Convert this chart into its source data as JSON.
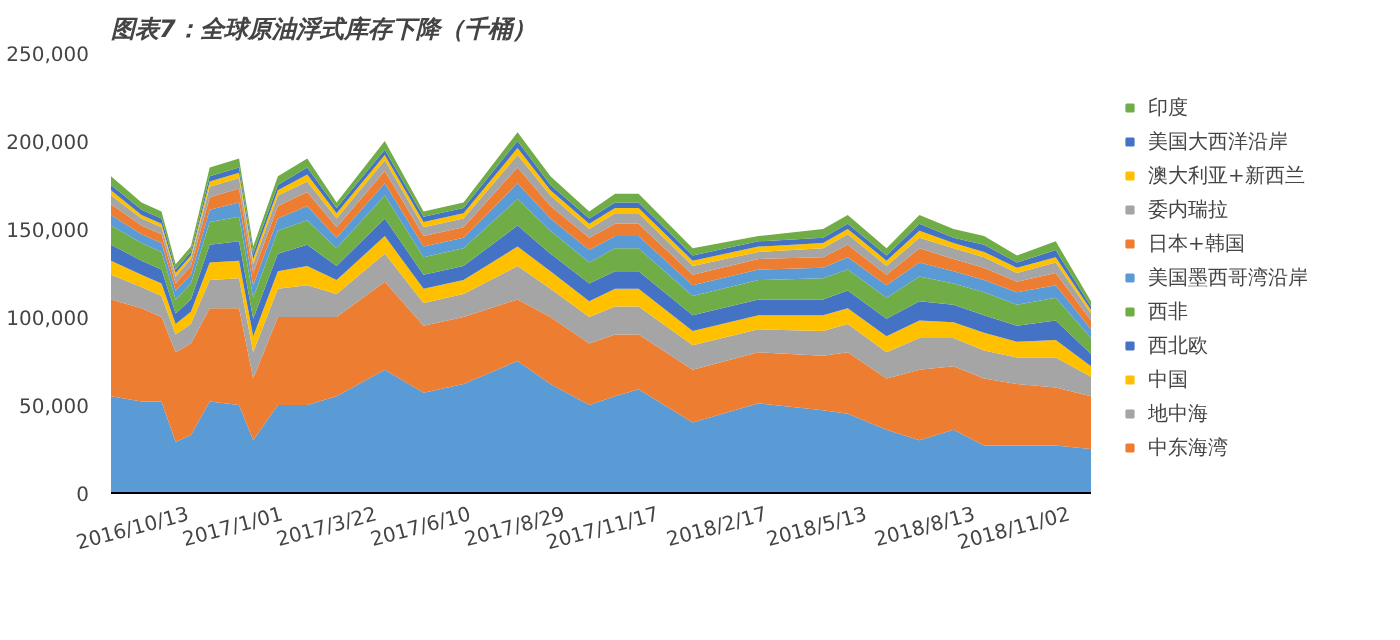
{
  "chart_data": {
    "type": "area",
    "stacked": true,
    "title": "图表7：全球原油浮式库存下降（千桶）",
    "x": [
      "2016-08-08",
      "2016-09-03",
      "2016-09-20",
      "2016-10-02",
      "2016-10-15",
      "2016-10-31",
      "2016-11-25",
      "2016-12-07",
      "2016-12-28",
      "2017-01-22",
      "2017-02-16",
      "2017-03-29",
      "2017-05-01",
      "2017-06-04",
      "2017-07-20",
      "2017-08-17",
      "2017-09-19",
      "2017-10-11",
      "2017-10-31",
      "2017-12-16",
      "2018-02-10",
      "2018-04-06",
      "2018-04-27",
      "2018-05-30",
      "2018-06-27",
      "2018-07-26",
      "2018-08-21",
      "2018-09-18",
      "2018-10-21",
      "2018-11-20"
    ],
    "xlim": [
      "2016-08-08",
      "2018-11-20"
    ],
    "xticks": [
      {
        "value": "2016-10-13",
        "label": "2016/10/13"
      },
      {
        "value": "2017-01-01",
        "label": "2017/1/01"
      },
      {
        "value": "2017-03-22",
        "label": "2017/3/22"
      },
      {
        "value": "2017-06-10",
        "label": "2017/6/10"
      },
      {
        "value": "2017-08-29",
        "label": "2017/8/29"
      },
      {
        "value": "2017-11-17",
        "label": "2017/11/17"
      },
      {
        "value": "2018-02-17",
        "label": "2018/2/17"
      },
      {
        "value": "2018-05-13",
        "label": "2018/5/13"
      },
      {
        "value": "2018-08-13",
        "label": "2018/8/13"
      },
      {
        "value": "2018-11-02",
        "label": "2018/11/02"
      }
    ],
    "ylim": [
      0,
      250000
    ],
    "yticks": [
      {
        "value": 0,
        "label": "0"
      },
      {
        "value": 50000,
        "label": "50,000"
      },
      {
        "value": 100000,
        "label": "100,000"
      },
      {
        "value": 150000,
        "label": "150,000"
      },
      {
        "value": 200000,
        "label": "200,000"
      },
      {
        "value": 250000,
        "label": "250,000"
      }
    ],
    "legend": "right",
    "series": [
      {
        "color": "#5b9bd5",
        "values": [
          55000,
          52000,
          52000,
          29000,
          33000,
          52000,
          50000,
          30000,
          50000,
          50000,
          55000,
          70000,
          57000,
          62000,
          75000,
          62000,
          50000,
          55000,
          59000,
          40000,
          51000,
          47000,
          45000,
          36000,
          30000,
          36000,
          27000,
          27000,
          27000,
          25000
        ]
      },
      {
        "name": "中东海湾",
        "color": "#ed7d31",
        "values": [
          55000,
          53000,
          48000,
          51000,
          52000,
          53000,
          55000,
          35000,
          50000,
          50000,
          45000,
          50000,
          38000,
          38000,
          35000,
          38000,
          35000,
          35000,
          31000,
          30000,
          29000,
          31000,
          35000,
          29000,
          40000,
          36000,
          38000,
          35000,
          33000,
          30000
        ]
      },
      {
        "name": "地中海",
        "color": "#a5a5a5",
        "values": [
          14000,
          12000,
          12000,
          10000,
          11000,
          16000,
          17000,
          15000,
          16000,
          18000,
          13000,
          16000,
          13000,
          13000,
          19000,
          16000,
          15000,
          16000,
          16000,
          14000,
          13000,
          14000,
          16000,
          15000,
          18000,
          16000,
          16000,
          15000,
          17000,
          11000
        ]
      },
      {
        "name": "中国",
        "color": "#ffc000",
        "values": [
          8000,
          7000,
          7000,
          6000,
          7000,
          10000,
          10000,
          9000,
          10000,
          11000,
          8000,
          10000,
          8000,
          8000,
          11000,
          10000,
          9000,
          10000,
          10000,
          8000,
          8000,
          9000,
          9000,
          9000,
          10000,
          9000,
          10000,
          9000,
          10000,
          6000
        ]
      },
      {
        "name": "西北欧",
        "color": "#4472c4",
        "values": [
          9000,
          8000,
          8000,
          6000,
          7000,
          10000,
          11000,
          10000,
          10000,
          12000,
          8000,
          10000,
          8000,
          8000,
          12000,
          10000,
          10000,
          10000,
          10000,
          9000,
          9000,
          9000,
          10000,
          10000,
          11000,
          10000,
          10000,
          9000,
          11000,
          7000
        ]
      },
      {
        "name": "西非",
        "color": "#70ad47",
        "values": [
          11000,
          10000,
          10000,
          8000,
          9000,
          13000,
          14000,
          12000,
          13000,
          14000,
          10000,
          13000,
          10000,
          10000,
          15000,
          13000,
          12000,
          13000,
          13000,
          11000,
          11000,
          12000,
          12000,
          12000,
          14000,
          12000,
          13000,
          12000,
          13000,
          9000
        ]
      },
      {
        "name": "美国墨西哥湾沿岸",
        "color": "#5b9bd5",
        "values": [
          6000,
          5000,
          5000,
          5000,
          5000,
          7000,
          8000,
          7000,
          7000,
          8000,
          6000,
          7000,
          6000,
          6000,
          9000,
          7000,
          7000,
          7000,
          7000,
          6000,
          6000,
          6000,
          7000,
          7000,
          8000,
          7000,
          7000,
          7000,
          7000,
          5000
        ]
      },
      {
        "name": "日本+韩国",
        "color": "#ed7d31",
        "values": [
          6000,
          5000,
          5000,
          4000,
          5000,
          7000,
          8000,
          7000,
          7000,
          8000,
          6000,
          7000,
          6000,
          6000,
          9000,
          7000,
          7000,
          7000,
          7000,
          6000,
          6000,
          6000,
          7000,
          6000,
          8000,
          7000,
          7000,
          6000,
          7000,
          5000
        ]
      },
      {
        "name": "委内瑞拉",
        "color": "#a5a5a5",
        "values": [
          5000,
          4000,
          4000,
          4000,
          4000,
          6000,
          6000,
          5000,
          6000,
          6000,
          5000,
          6000,
          5000,
          5000,
          7000,
          6000,
          5000,
          6000,
          6000,
          5000,
          4000,
          5000,
          6000,
          5000,
          6000,
          6000,
          6000,
          5000,
          6000,
          4000
        ]
      },
      {
        "name": "澳大利亚+新西兰",
        "color": "#ffc000",
        "values": [
          3000,
          2000,
          2000,
          2000,
          2000,
          3000,
          3000,
          3000,
          3000,
          4000,
          3000,
          3000,
          3000,
          3000,
          4000,
          3000,
          3000,
          3000,
          3000,
          3000,
          3000,
          3000,
          3000,
          3000,
          4000,
          3000,
          3000,
          3000,
          3000,
          2000
        ]
      },
      {
        "name": "美国大西洋沿岸",
        "color": "#4472c4",
        "values": [
          3000,
          3000,
          3000,
          2000,
          2000,
          3000,
          3000,
          3000,
          3000,
          4000,
          3000,
          3000,
          3000,
          3000,
          4000,
          3000,
          3000,
          3000,
          3000,
          3000,
          3000,
          3000,
          3000,
          3000,
          4000,
          3000,
          4000,
          3000,
          4000,
          2000
        ]
      },
      {
        "name": "印度",
        "color": "#70ad47",
        "values": [
          5000,
          4000,
          4000,
          3000,
          3000,
          5000,
          5000,
          4000,
          5000,
          5000,
          3000,
          5000,
          3000,
          3000,
          5000,
          5000,
          4000,
          5000,
          5000,
          4000,
          3000,
          5000,
          5000,
          4000,
          5000,
          5000,
          5000,
          4000,
          5000,
          3000
        ]
      }
    ]
  }
}
